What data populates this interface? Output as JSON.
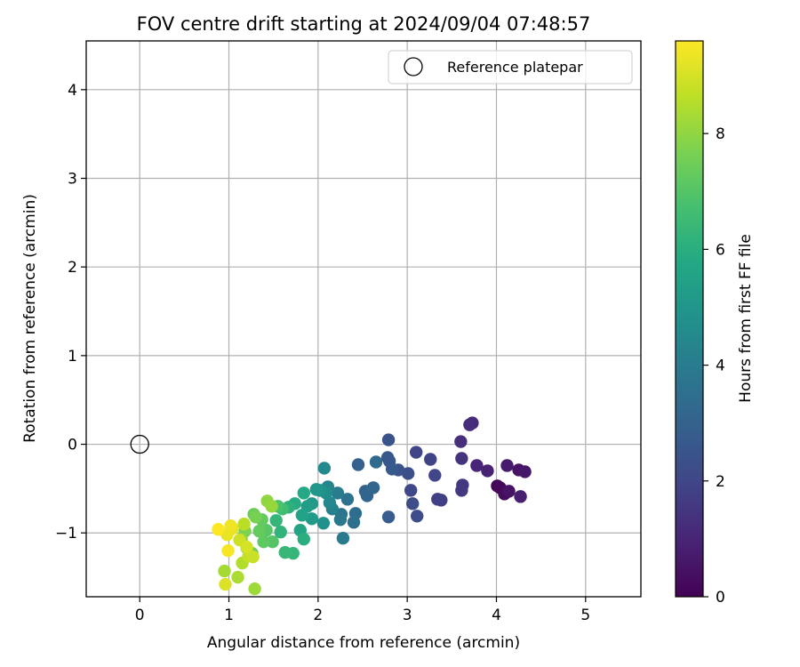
{
  "chart_data": {
    "type": "scatter",
    "title": "FOV centre drift starting at 2024/09/04 07:48:57",
    "xlabel": "Angular distance from reference (arcmin)",
    "ylabel": "Rotation from reference (arcmin)",
    "xlim": [
      -0.6,
      5.62
    ],
    "ylim": [
      -1.72,
      4.55
    ],
    "xticks": [
      0,
      1,
      2,
      3,
      4,
      5
    ],
    "xtick_labels": [
      "0",
      "1",
      "2",
      "3",
      "4",
      "5"
    ],
    "yticks": [
      -1,
      0,
      1,
      2,
      3,
      4
    ],
    "ytick_labels": [
      "−1",
      "0",
      "1",
      "2",
      "3",
      "4"
    ],
    "grid": true,
    "legend": {
      "position": "top-right",
      "entries": [
        "Reference platepar"
      ]
    },
    "reference_point": {
      "x": 0,
      "y": 0,
      "label": "Reference platepar"
    },
    "colorbar": {
      "label": "Hours from first FF file",
      "colormap": "viridis",
      "range": [
        0,
        9.6
      ],
      "ticks": [
        0,
        2,
        4,
        6,
        8
      ],
      "tick_labels": [
        "0",
        "2",
        "4",
        "6",
        "8"
      ]
    },
    "points": [
      {
        "x": 4.01,
        "y": -0.47,
        "h": 0.1
      },
      {
        "x": 4.04,
        "y": -0.49,
        "h": 0.2
      },
      {
        "x": 4.09,
        "y": -0.56,
        "h": 0.3
      },
      {
        "x": 4.14,
        "y": -0.53,
        "h": 0.5
      },
      {
        "x": 4.25,
        "y": -0.29,
        "h": 0.5
      },
      {
        "x": 4.32,
        "y": -0.31,
        "h": 0.6
      },
      {
        "x": 4.12,
        "y": -0.24,
        "h": 0.7
      },
      {
        "x": 4.27,
        "y": -0.59,
        "h": 0.8
      },
      {
        "x": 3.9,
        "y": -0.3,
        "h": 0.9
      },
      {
        "x": 3.78,
        "y": -0.24,
        "h": 1.0
      },
      {
        "x": 3.73,
        "y": 0.24,
        "h": 1.1
      },
      {
        "x": 3.7,
        "y": 0.22,
        "h": 1.2
      },
      {
        "x": 3.6,
        "y": 0.03,
        "h": 1.3
      },
      {
        "x": 3.61,
        "y": -0.16,
        "h": 1.4
      },
      {
        "x": 3.62,
        "y": -0.46,
        "h": 1.5
      },
      {
        "x": 3.61,
        "y": -0.52,
        "h": 1.6
      },
      {
        "x": 3.38,
        "y": -0.63,
        "h": 1.7
      },
      {
        "x": 3.34,
        "y": -0.62,
        "h": 1.8
      },
      {
        "x": 3.26,
        "y": -0.17,
        "h": 1.9
      },
      {
        "x": 3.1,
        "y": -0.09,
        "h": 2.0
      },
      {
        "x": 3.31,
        "y": -0.35,
        "h": 2.0
      },
      {
        "x": 3.04,
        "y": -0.52,
        "h": 2.1
      },
      {
        "x": 3.11,
        "y": -0.81,
        "h": 2.2
      },
      {
        "x": 3.06,
        "y": -0.67,
        "h": 2.2
      },
      {
        "x": 3.01,
        "y": -0.33,
        "h": 2.3
      },
      {
        "x": 2.9,
        "y": -0.29,
        "h": 2.4
      },
      {
        "x": 2.79,
        "y": 0.05,
        "h": 2.5
      },
      {
        "x": 2.78,
        "y": -0.15,
        "h": 2.6
      },
      {
        "x": 2.8,
        "y": -0.19,
        "h": 2.6
      },
      {
        "x": 2.83,
        "y": -0.28,
        "h": 2.7
      },
      {
        "x": 2.79,
        "y": -0.82,
        "h": 2.8
      },
      {
        "x": 2.45,
        "y": -0.23,
        "h": 2.9
      },
      {
        "x": 2.53,
        "y": -0.53,
        "h": 3.0
      },
      {
        "x": 2.55,
        "y": -0.58,
        "h": 3.1
      },
      {
        "x": 2.62,
        "y": -0.49,
        "h": 3.2
      },
      {
        "x": 2.65,
        "y": -0.2,
        "h": 3.3
      },
      {
        "x": 2.42,
        "y": -0.78,
        "h": 3.4
      },
      {
        "x": 2.4,
        "y": -0.88,
        "h": 3.5
      },
      {
        "x": 2.33,
        "y": -0.62,
        "h": 3.6
      },
      {
        "x": 2.26,
        "y": -0.79,
        "h": 3.7
      },
      {
        "x": 2.25,
        "y": -0.85,
        "h": 3.8
      },
      {
        "x": 2.28,
        "y": -1.06,
        "h": 3.9
      },
      {
        "x": 2.22,
        "y": -0.55,
        "h": 4.0
      },
      {
        "x": 2.16,
        "y": -0.73,
        "h": 4.2
      },
      {
        "x": 2.11,
        "y": -0.48,
        "h": 4.3
      },
      {
        "x": 2.13,
        "y": -0.66,
        "h": 4.4
      },
      {
        "x": 2.07,
        "y": -0.27,
        "h": 4.5
      },
      {
        "x": 2.09,
        "y": -0.55,
        "h": 4.7
      },
      {
        "x": 2.06,
        "y": -0.89,
        "h": 4.8
      },
      {
        "x": 2.02,
        "y": -0.52,
        "h": 4.9
      },
      {
        "x": 1.98,
        "y": -0.51,
        "h": 5.0
      },
      {
        "x": 1.93,
        "y": -0.67,
        "h": 5.1
      },
      {
        "x": 1.93,
        "y": -0.84,
        "h": 5.2
      },
      {
        "x": 1.88,
        "y": -0.7,
        "h": 5.3
      },
      {
        "x": 1.82,
        "y": -0.8,
        "h": 5.5
      },
      {
        "x": 1.8,
        "y": -0.97,
        "h": 5.6
      },
      {
        "x": 1.84,
        "y": -0.55,
        "h": 5.8
      },
      {
        "x": 1.74,
        "y": -0.67,
        "h": 5.9
      },
      {
        "x": 1.84,
        "y": -1.07,
        "h": 6.0
      },
      {
        "x": 1.67,
        "y": -0.71,
        "h": 6.1
      },
      {
        "x": 1.58,
        "y": -0.99,
        "h": 6.2
      },
      {
        "x": 1.53,
        "y": -0.86,
        "h": 6.3
      },
      {
        "x": 1.72,
        "y": -1.23,
        "h": 6.3
      },
      {
        "x": 1.63,
        "y": -1.22,
        "h": 6.4
      },
      {
        "x": 1.6,
        "y": -0.73,
        "h": 6.6
      },
      {
        "x": 1.55,
        "y": -0.7,
        "h": 6.8
      },
      {
        "x": 1.49,
        "y": -1.1,
        "h": 7.0
      },
      {
        "x": 1.42,
        "y": -0.97,
        "h": 7.1
      },
      {
        "x": 1.39,
        "y": -1.1,
        "h": 7.2
      },
      {
        "x": 1.37,
        "y": -0.85,
        "h": 7.3
      },
      {
        "x": 1.34,
        "y": -0.98,
        "h": 7.3
      },
      {
        "x": 1.28,
        "y": -0.79,
        "h": 7.4
      },
      {
        "x": 1.26,
        "y": -1.23,
        "h": 7.5
      },
      {
        "x": 1.3,
        "y": -0.82,
        "h": 7.6
      },
      {
        "x": 1.18,
        "y": -0.98,
        "h": 7.7
      },
      {
        "x": 1.2,
        "y": -1.17,
        "h": 7.8
      },
      {
        "x": 1.14,
        "y": -1.07,
        "h": 7.9
      },
      {
        "x": 1.43,
        "y": -0.64,
        "h": 8.0
      },
      {
        "x": 1.48,
        "y": -0.7,
        "h": 8.1
      },
      {
        "x": 1.29,
        "y": -1.63,
        "h": 8.2
      },
      {
        "x": 0.95,
        "y": -1.43,
        "h": 8.3
      },
      {
        "x": 1.1,
        "y": -1.5,
        "h": 8.4
      },
      {
        "x": 1.15,
        "y": -1.34,
        "h": 8.5
      },
      {
        "x": 1.17,
        "y": -0.9,
        "h": 8.6
      },
      {
        "x": 1.22,
        "y": -1.26,
        "h": 8.7
      },
      {
        "x": 1.27,
        "y": -1.27,
        "h": 8.8
      },
      {
        "x": 1.12,
        "y": -1.08,
        "h": 8.9
      },
      {
        "x": 1.2,
        "y": -1.16,
        "h": 9.0
      },
      {
        "x": 0.96,
        "y": -1.58,
        "h": 9.1
      },
      {
        "x": 1.04,
        "y": -0.95,
        "h": 9.2
      },
      {
        "x": 0.98,
        "y": -1.02,
        "h": 9.3
      },
      {
        "x": 1.02,
        "y": -0.92,
        "h": 9.4
      },
      {
        "x": 0.99,
        "y": -1.2,
        "h": 9.5
      },
      {
        "x": 0.88,
        "y": -0.96,
        "h": 9.6
      }
    ]
  }
}
